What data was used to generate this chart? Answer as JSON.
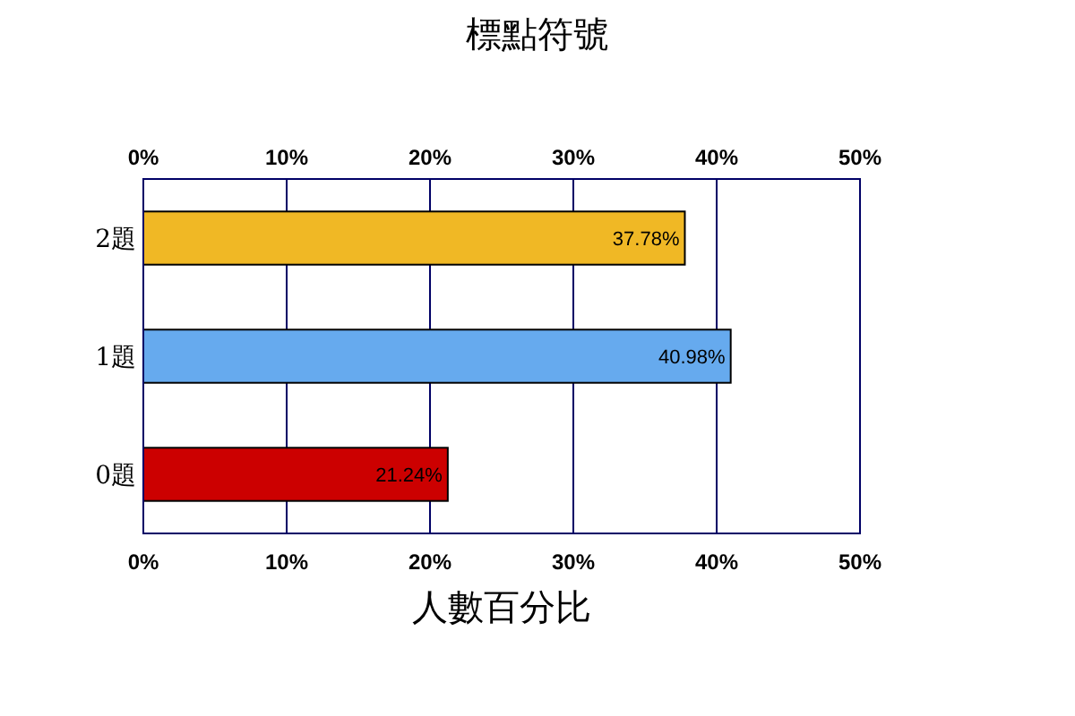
{
  "chart_data": {
    "type": "bar",
    "orientation": "horizontal",
    "title": "標點符號",
    "xlabel": "人數百分比",
    "categories": [
      "2題",
      "1題",
      "0題"
    ],
    "values": [
      37.78,
      40.98,
      21.24
    ],
    "colors": [
      "#f0b825",
      "#66aaee",
      "#cc0000"
    ],
    "value_labels": [
      "37.78%",
      "40.98%",
      "21.24%"
    ],
    "xlim": [
      0,
      50
    ],
    "xticks": [
      {
        "value": 0,
        "label": "0%"
      },
      {
        "value": 10,
        "label": "10%"
      },
      {
        "value": 20,
        "label": "20%"
      },
      {
        "value": 30,
        "label": "30%"
      },
      {
        "value": 40,
        "label": "40%"
      },
      {
        "value": 50,
        "label": "50%"
      }
    ],
    "x2lim": [
      0,
      50
    ],
    "x2ticks": [
      {
        "value": 0,
        "label": "0%"
      },
      {
        "value": 10,
        "label": "10%"
      },
      {
        "value": 20,
        "label": "20%"
      },
      {
        "value": 30,
        "label": "30%"
      },
      {
        "value": 40,
        "label": "40%"
      },
      {
        "value": 50,
        "label": "50%"
      }
    ],
    "grid": "x"
  }
}
